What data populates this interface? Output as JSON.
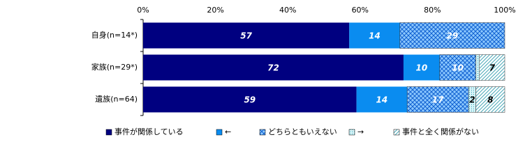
{
  "chart_data": {
    "type": "stacked-bar-horizontal",
    "categories": [
      "自身(n=14*)",
      "家族(n=29*)",
      "遺族(n=64)"
    ],
    "series": [
      {
        "name": "事件が関係している",
        "color": "#000080",
        "label_color": "#ffffff",
        "pattern": "solid",
        "values": [
          57,
          72,
          59
        ]
      },
      {
        "name": "←",
        "color": "#0a8cf0",
        "label_color": "#ffffff",
        "pattern": "solid",
        "values": [
          14,
          10,
          14
        ]
      },
      {
        "name": "どちらともいえない",
        "color": "#2f7fe0",
        "label_color": "#ffffff",
        "pattern": "crosshatch",
        "values": [
          29,
          10,
          17
        ]
      },
      {
        "name": "→",
        "color": "#1fa0b0",
        "label_color": "#000000",
        "pattern": "dots",
        "values": [
          0,
          1,
          2
        ],
        "value_labels": [
          null,
          null,
          "2"
        ]
      },
      {
        "name": "事件と全く関係がない",
        "color": "#4aa8b8",
        "label_color": "#000000",
        "pattern": "diagonal",
        "values": [
          0,
          7,
          8
        ],
        "value_labels": [
          null,
          "7",
          "8"
        ]
      }
    ],
    "xlim": [
      0,
      100
    ],
    "xticks": [
      {
        "value": 0,
        "label": "0%"
      },
      {
        "value": 20,
        "label": "20%"
      },
      {
        "value": 40,
        "label": "40%"
      },
      {
        "value": 60,
        "label": "60%"
      },
      {
        "value": 80,
        "label": "80%"
      },
      {
        "value": 100,
        "label": "100%"
      }
    ],
    "grid": false,
    "legend": "bottom"
  }
}
